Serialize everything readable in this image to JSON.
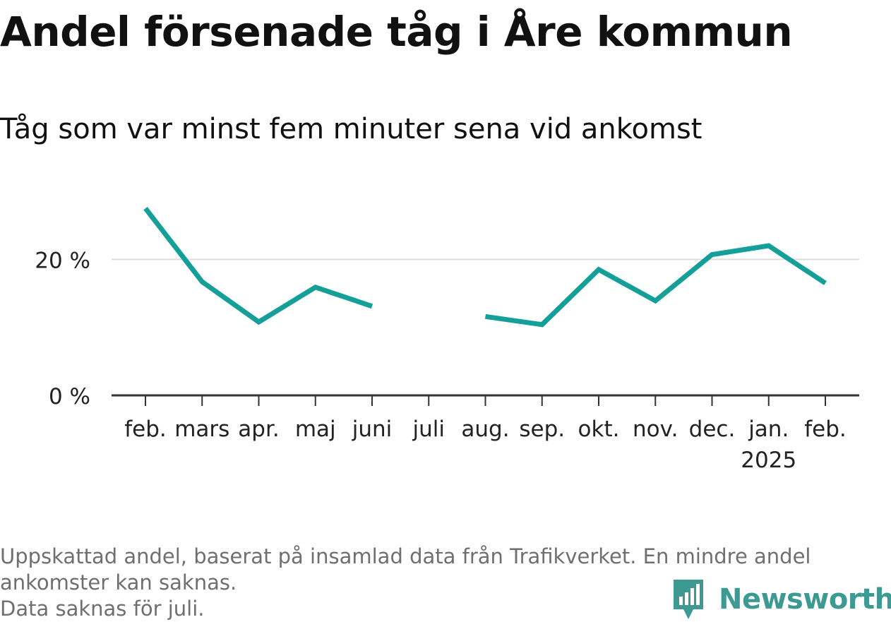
{
  "title": "Andel försenade tåg i Åre kommun",
  "subtitle": "Tåg som var minst fem minuter sena vid ankomst",
  "footnote": {
    "line1": "Uppskattad andel, baserat på insamlad data från Trafikverket. En mindre andel",
    "line2": "ankomster kan saknas.",
    "line3": "Data saknas för juli."
  },
  "brand": {
    "name": "Newsworthy",
    "icon": "newsworthy-logo-icon"
  },
  "colors": {
    "line": "#14a098",
    "grid": "#dddddd",
    "axis": "#333333",
    "brand": "#3d9a92"
  },
  "chart_data": {
    "type": "line",
    "x": [
      "feb.",
      "mars",
      "apr.",
      "maj",
      "juni",
      "juli",
      "aug.",
      "sep.",
      "okt.",
      "nov.",
      "dec.",
      "jan.",
      "feb."
    ],
    "x_sublabels": [
      "",
      "",
      "",
      "",
      "",
      "",
      "",
      "",
      "",
      "",
      "",
      "2025",
      ""
    ],
    "series": [
      {
        "values": [
          27.5,
          16.7,
          10.8,
          15.9,
          13.1,
          null,
          11.6,
          10.4,
          18.5,
          13.9,
          20.7,
          22.0,
          16.5
        ]
      }
    ],
    "yticks": [
      0,
      20
    ],
    "ytick_labels": [
      "0 %",
      "20 %"
    ],
    "ylim": [
      0,
      30
    ],
    "grid": true
  }
}
